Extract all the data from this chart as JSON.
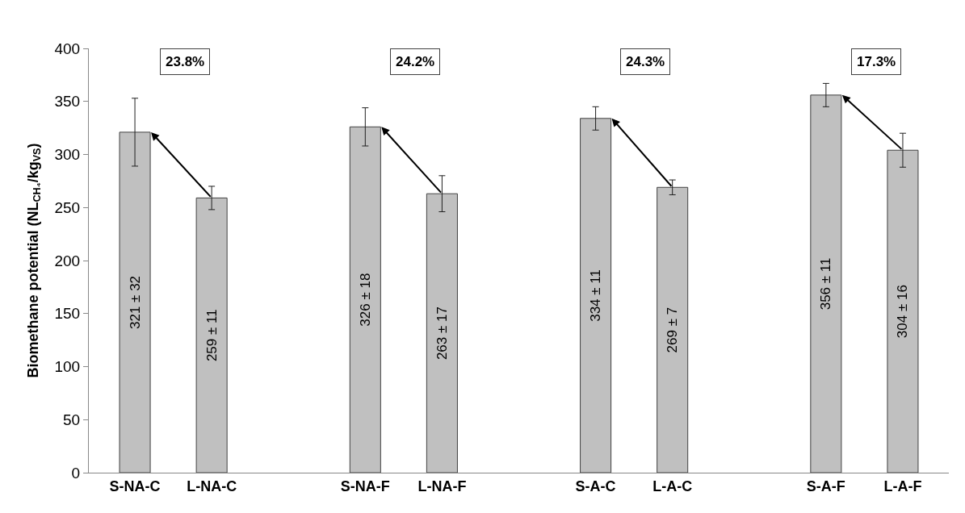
{
  "chart_data": {
    "type": "bar",
    "ylabel": "Biomethane potential (NL$_{CH₄}$/kg$_{VS}$)",
    "categories": [
      "S-NA-C",
      "L-NA-C",
      null,
      "S-NA-F",
      "L-NA-F",
      null,
      "S-A-C",
      "L-A-C",
      null,
      "S-A-F",
      "L-A-F"
    ],
    "values": [
      321,
      259,
      null,
      326,
      263,
      null,
      334,
      269,
      null,
      356,
      304
    ],
    "errors": [
      32,
      11,
      null,
      18,
      17,
      null,
      11,
      7,
      null,
      11,
      16
    ],
    "value_labels": [
      "321 ± 32",
      "259 ± 11",
      null,
      "326 ± 18",
      "263 ± 17",
      null,
      "334 ± 11",
      "269 ± 7",
      null,
      "356 ± 11",
      "304 ± 16"
    ],
    "color": "#c0c0c0",
    "ylim": [
      0,
      400
    ],
    "yticks": [
      0,
      50,
      100,
      150,
      200,
      250,
      300,
      350,
      400
    ],
    "annotations": [
      "23.8%",
      "24.2%",
      "24.3%",
      "17.3%"
    ]
  }
}
